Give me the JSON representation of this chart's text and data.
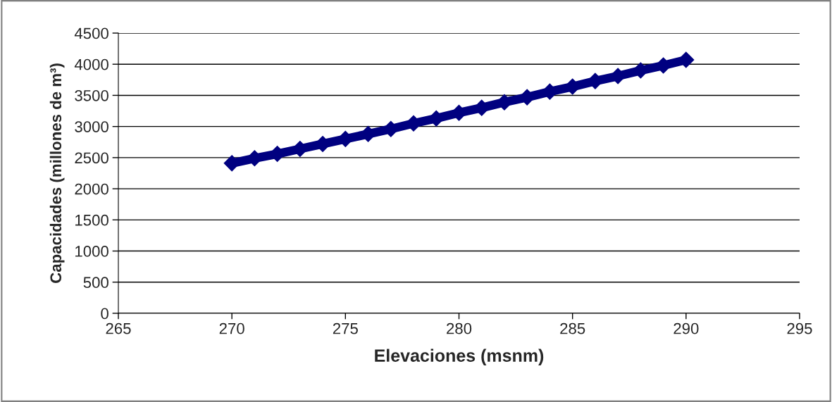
{
  "chart_data": {
    "type": "line",
    "xlabel": "Elevaciones (msnm)",
    "ylabel": "Capacidades (millones de m³)",
    "x": [
      270,
      271,
      272,
      273,
      274,
      275,
      276,
      277,
      278,
      279,
      280,
      281,
      282,
      283,
      284,
      285,
      286,
      287,
      288,
      289,
      290
    ],
    "series": [
      {
        "color": "#000080",
        "values": [
          2410,
          2490,
          2560,
          2640,
          2720,
          2800,
          2880,
          2960,
          3050,
          3130,
          3220,
          3300,
          3390,
          3470,
          3560,
          3640,
          3730,
          3810,
          3900,
          3980,
          4070
        ]
      }
    ],
    "xlim": [
      265,
      295
    ],
    "xticks": [
      265,
      270,
      275,
      280,
      285,
      290,
      295
    ],
    "ylim": [
      0,
      4500
    ],
    "yticks": [
      0,
      500,
      1000,
      1500,
      2000,
      2500,
      3000,
      3500,
      4000,
      4500
    ],
    "grid": "y",
    "marker": "diamond",
    "line_style": "solid"
  }
}
